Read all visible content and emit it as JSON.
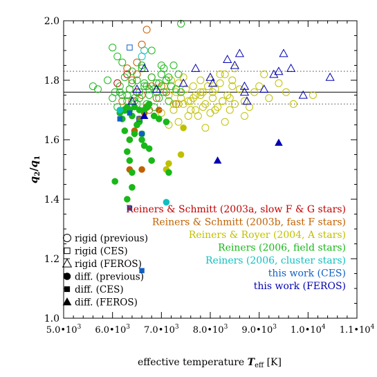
{
  "chart_data": {
    "type": "scatter",
    "title": "",
    "xlabel": "effective temperature",
    "xlabel_symbol": "T",
    "xlabel_sub": "eff",
    "xlabel_unit": "[K]",
    "ylabel_num": "q",
    "ylabel_num_sub": "2",
    "ylabel_den": "q",
    "ylabel_den_sub": "1",
    "xlim": [
      5000,
      11000
    ],
    "ylim": [
      1.0,
      2.0
    ],
    "xticks": [
      {
        "value": 5000,
        "mant": "5.0",
        "exp": "3"
      },
      {
        "value": 6000,
        "mant": "6.0",
        "exp": "3"
      },
      {
        "value": 7000,
        "mant": "7.0",
        "exp": "3"
      },
      {
        "value": 8000,
        "mant": "8.0",
        "exp": "3"
      },
      {
        "value": 9000,
        "mant": "9.0",
        "exp": "3"
      },
      {
        "value": 10000,
        "mant": "1.0",
        "exp": "4"
      },
      {
        "value": 11000,
        "mant": "1.1",
        "exp": "4"
      }
    ],
    "yticks": [
      {
        "value": 1.0,
        "label": "1.0"
      },
      {
        "value": 1.2,
        "label": "1.2"
      },
      {
        "value": 1.4,
        "label": "1.4"
      },
      {
        "value": 1.6,
        "label": "1.6"
      },
      {
        "value": 1.8,
        "label": "1.8"
      },
      {
        "value": 2.0,
        "label": "2.0"
      }
    ],
    "reference_lines": [
      {
        "y": 1.76,
        "style": "solid"
      },
      {
        "y": 1.83,
        "style": "dotted"
      },
      {
        "y": 1.72,
        "style": "dotted"
      }
    ],
    "symbol_legend": [
      {
        "marker": "circle",
        "filled": false,
        "label": "rigid (previous)"
      },
      {
        "marker": "square",
        "filled": false,
        "label": "rigid (CES)"
      },
      {
        "marker": "triangle",
        "filled": false,
        "label": "rigid (FEROS)"
      },
      {
        "marker": "circle",
        "filled": true,
        "label": "diff. (previous)"
      },
      {
        "marker": "square",
        "filled": true,
        "label": "diff. (CES)"
      },
      {
        "marker": "triangle",
        "filled": true,
        "label": "diff. (FEROS)"
      }
    ],
    "color_legend": [
      {
        "label": "Reiners & Schmitt (2003a, slow F & G stars)",
        "color": "#c00000"
      },
      {
        "label": "Reiners & Schmitt (2003b, fast F stars)",
        "color": "#c06000"
      },
      {
        "label": "Reiners & Royer (2004, A stars)",
        "color": "#c0c000"
      },
      {
        "label": "Reiners (2006, field stars)",
        "color": "#18b818"
      },
      {
        "label": "Reiners (2006, cluster stars)",
        "color": "#10c0c0"
      },
      {
        "label": "this work (CES)",
        "color": "#1060c0"
      },
      {
        "label": "this work (FEROS)",
        "color": "#0000b0"
      }
    ],
    "series": [
      {
        "source": "Reiners & Schmitt (2003a)",
        "color": "#c00000",
        "marker": "circle",
        "filled": false,
        "x": [
          6100,
          6300,
          6500
        ],
        "y": [
          1.79,
          1.82,
          1.76
        ]
      },
      {
        "source": "Reiners & Schmitt (2003b)",
        "color": "#c06000",
        "marker": "circle",
        "filled": false,
        "x": [
          6300,
          6400,
          6500,
          6700,
          6800,
          6600,
          6400,
          6900,
          7000,
          6700,
          6200,
          6500,
          6800,
          7100,
          7300,
          6600,
          6750,
          6350
        ],
        "y": [
          1.84,
          1.8,
          1.82,
          1.97,
          1.78,
          1.75,
          1.73,
          1.74,
          1.78,
          1.71,
          1.73,
          1.86,
          1.81,
          1.76,
          1.72,
          1.92,
          1.7,
          1.77
        ]
      },
      {
        "source": "Reiners & Schmitt (2003b)",
        "color": "#c06000",
        "marker": "circle",
        "filled": true,
        "x": [
          6450,
          6550,
          6350,
          6600,
          6350,
          6650,
          6950
        ],
        "y": [
          1.63,
          1.67,
          1.6,
          1.5,
          1.5,
          1.69,
          1.7
        ]
      },
      {
        "source": "Reiners & Royer (2004)",
        "color": "#c0c000",
        "marker": "circle",
        "filled": false,
        "x": [
          7050,
          7150,
          7200,
          7250,
          7300,
          7350,
          7400,
          7450,
          7500,
          7550,
          7600,
          7650,
          7700,
          7750,
          7800,
          7850,
          7900,
          7950,
          8000,
          8050,
          8100,
          8150,
          8200,
          8250,
          8300,
          8350,
          8400,
          8450,
          8500,
          8600,
          8700,
          8800,
          8900,
          9000,
          9100,
          9200,
          9400,
          9550,
          9700,
          10100,
          7350,
          7550,
          7700,
          7900,
          8100,
          8300,
          8500,
          8700,
          7600,
          7800,
          8000,
          8200,
          8400,
          7250,
          7450,
          7650,
          7850,
          8050,
          8250,
          8450,
          7000,
          7150,
          7350,
          7800
        ],
        "y": [
          1.78,
          1.75,
          1.8,
          1.72,
          1.76,
          1.79,
          1.74,
          1.81,
          1.77,
          1.73,
          1.7,
          1.78,
          1.75,
          1.68,
          1.8,
          1.76,
          1.72,
          1.78,
          1.69,
          1.74,
          1.77,
          1.71,
          1.79,
          1.73,
          1.82,
          1.75,
          1.7,
          1.78,
          1.84,
          1.77,
          1.73,
          1.71,
          1.76,
          1.78,
          1.82,
          1.74,
          1.79,
          1.76,
          1.72,
          1.75,
          1.66,
          1.68,
          1.7,
          1.64,
          1.7,
          1.66,
          1.72,
          1.68,
          1.73,
          1.76,
          1.8,
          1.82,
          1.74,
          1.7,
          1.72,
          1.74,
          1.71,
          1.76,
          1.73,
          1.8,
          1.69,
          1.65,
          1.72,
          1.75
        ]
      },
      {
        "source": "Reiners & Royer (2004)",
        "color": "#c0c000",
        "marker": "circle",
        "filled": true,
        "x": [
          7450,
          7400,
          7150,
          7100
        ],
        "y": [
          1.64,
          1.55,
          1.52,
          1.5
        ]
      },
      {
        "source": "Reiners (2006, field)",
        "color": "#18b818",
        "marker": "circle",
        "filled": false,
        "x": [
          5600,
          5700,
          5900,
          6000,
          6050,
          6100,
          6150,
          6200,
          6250,
          6300,
          6350,
          6400,
          6450,
          6500,
          6550,
          6600,
          6650,
          6700,
          6750,
          6800,
          6850,
          6900,
          6950,
          7000,
          7050,
          7100,
          7150,
          7200,
          7250,
          7300,
          7350,
          7400,
          6000,
          6200,
          6400,
          6600,
          6800,
          7000,
          6100,
          6300,
          6500,
          6700,
          6900,
          7100,
          6250,
          6450,
          6650,
          6850,
          7050,
          6150,
          6350,
          6550,
          6750,
          6950,
          7150,
          7400
        ],
        "y": [
          1.78,
          1.77,
          1.8,
          1.74,
          1.76,
          1.71,
          1.78,
          1.75,
          1.81,
          1.73,
          1.77,
          1.79,
          1.74,
          1.8,
          1.76,
          1.84,
          1.78,
          1.72,
          1.75,
          1.81,
          1.77,
          1.79,
          1.74,
          1.82,
          1.76,
          1.8,
          1.73,
          1.78,
          1.85,
          1.77,
          1.82,
          1.99,
          1.91,
          1.86,
          1.83,
          1.85,
          1.9,
          1.85,
          1.88,
          1.75,
          1.72,
          1.78,
          1.76,
          1.8,
          1.7,
          1.73,
          1.79,
          1.71,
          1.84,
          1.76,
          1.71,
          1.74,
          1.77,
          1.79,
          1.81,
          1.76
        ]
      },
      {
        "source": "Reiners (2006, field)",
        "color": "#18b818",
        "marker": "circle",
        "filled": true,
        "x": [
          6050,
          6150,
          6250,
          6300,
          6350,
          6400,
          6450,
          6500,
          6550,
          6600,
          6650,
          6700,
          6750,
          6800,
          6850,
          6950,
          7100,
          6250,
          6350,
          6450,
          6550,
          6650,
          6300,
          6400,
          6200,
          6350,
          6400,
          6300,
          6500,
          7150,
          6600,
          6750
        ],
        "y": [
          1.46,
          1.69,
          1.7,
          1.71,
          1.7,
          1.68,
          1.71,
          1.65,
          1.7,
          1.62,
          1.7,
          1.71,
          1.57,
          1.53,
          1.68,
          1.67,
          1.66,
          1.63,
          1.6,
          1.62,
          1.66,
          1.58,
          1.56,
          1.49,
          1.67,
          1.53,
          1.44,
          1.4,
          1.65,
          1.49,
          1.6,
          1.72
        ]
      },
      {
        "source": "Reiners (2006, cluster)",
        "color": "#10c0c0",
        "marker": "circle",
        "filled": false,
        "x": [
          6650,
          6600
        ],
        "y": [
          1.9,
          1.88
        ]
      },
      {
        "source": "Reiners (2006, cluster)",
        "color": "#10c0c0",
        "marker": "circle",
        "filled": true,
        "x": [
          6150,
          7100
        ],
        "y": [
          1.7,
          1.39
        ]
      },
      {
        "source": "this work (CES)",
        "color": "#1060c0",
        "marker": "square",
        "filled": false,
        "x": [
          6350,
          6550
        ],
        "y": [
          1.91,
          1.67
        ]
      },
      {
        "source": "this work (CES)",
        "color": "#1060c0",
        "marker": "square",
        "filled": true,
        "x": [
          6150,
          6350,
          6350,
          6600,
          6600
        ],
        "y": [
          1.67,
          1.69,
          1.37,
          1.62,
          1.16
        ]
      },
      {
        "source": "this work (FEROS)",
        "color": "#0000b0",
        "marker": "triangle",
        "filled": false,
        "x": [
          8000,
          8350,
          8500,
          8600,
          8700,
          8750,
          9100,
          9300,
          9400,
          9500,
          9650,
          9900,
          10450,
          6400,
          6650,
          6900,
          7450,
          8050,
          8700,
          6500,
          7700
        ],
        "y": [
          1.81,
          1.87,
          1.85,
          1.89,
          1.78,
          1.73,
          1.77,
          1.82,
          1.83,
          1.89,
          1.84,
          1.75,
          1.81,
          1.73,
          1.84,
          1.77,
          1.79,
          1.79,
          1.76,
          1.77,
          1.84
        ]
      },
      {
        "source": "this work (FEROS)",
        "color": "#0000b0",
        "marker": "triangle",
        "filled": true,
        "x": [
          6650,
          8150,
          9400
        ],
        "y": [
          1.68,
          1.53,
          1.59
        ]
      }
    ]
  }
}
